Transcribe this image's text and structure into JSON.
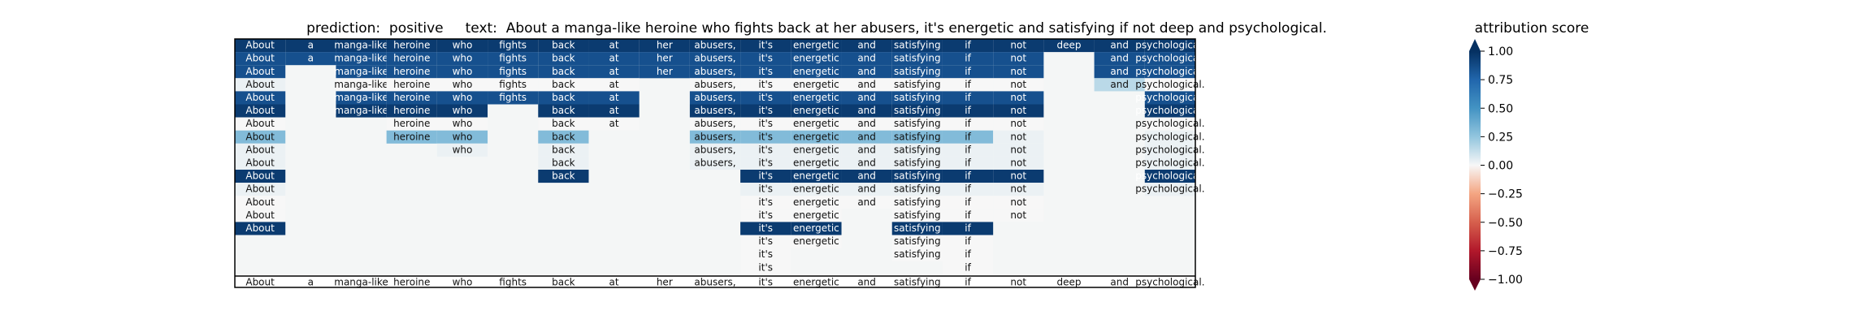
{
  "chart_data": {
    "type": "heatmap",
    "title": "prediction:  positive     text:  About a manga-like heroine who fights back at her abusers, it's energetic and satisfying if not deep and psychological.",
    "prediction": "positive",
    "text": "About a manga-like heroine who fights back at her abusers, it's energetic and satisfying if not deep and psychological.",
    "tokens": [
      "About",
      "a",
      "manga-like",
      "heroine",
      "who",
      "fights",
      "back",
      "at",
      "her",
      "abusers,",
      "it's",
      "energetic",
      "and",
      "satisfying",
      "if",
      "not",
      "deep",
      "and",
      "psychological."
    ],
    "rows": [
      [
        0.95,
        0.95,
        0.95,
        0.95,
        0.95,
        0.95,
        0.95,
        0.95,
        0.95,
        0.95,
        0.95,
        0.95,
        0.95,
        0.95,
        0.95,
        0.95,
        0.95,
        0.95,
        0.95
      ],
      [
        0.85,
        0.85,
        0.85,
        0.85,
        0.85,
        0.85,
        0.85,
        0.85,
        0.85,
        0.85,
        0.85,
        0.85,
        0.85,
        0.85,
        0.85,
        0.85,
        null,
        0.85,
        0.85
      ],
      [
        0.85,
        null,
        0.85,
        0.85,
        0.85,
        0.85,
        0.85,
        0.85,
        0.85,
        0.85,
        0.85,
        0.85,
        0.85,
        0.85,
        0.85,
        0.85,
        null,
        0.85,
        0.85
      ],
      [
        0.03,
        null,
        0.0,
        0.0,
        0.0,
        0.0,
        0.0,
        0.0,
        null,
        0.0,
        0.0,
        0.0,
        0.0,
        0.0,
        0.0,
        0.0,
        null,
        0.15,
        0.0
      ],
      [
        0.85,
        null,
        0.85,
        0.85,
        0.85,
        0.85,
        0.85,
        0.85,
        null,
        0.85,
        0.85,
        0.85,
        0.85,
        0.85,
        0.85,
        0.85,
        null,
        null,
        0.85
      ],
      [
        0.95,
        null,
        0.95,
        0.95,
        0.95,
        null,
        0.95,
        0.95,
        null,
        0.95,
        0.95,
        0.95,
        0.95,
        0.95,
        0.95,
        0.95,
        null,
        null,
        0.95
      ],
      [
        0.0,
        null,
        null,
        0.0,
        0.0,
        null,
        0.0,
        0.0,
        null,
        0.0,
        0.0,
        0.0,
        0.0,
        0.0,
        0.0,
        0.0,
        null,
        null,
        0.0
      ],
      [
        0.3,
        null,
        null,
        0.3,
        0.3,
        null,
        0.3,
        null,
        null,
        0.3,
        0.3,
        0.3,
        0.3,
        0.3,
        0.3,
        0.03,
        null,
        null,
        0.03
      ],
      [
        0.03,
        null,
        null,
        null,
        0.03,
        null,
        0.03,
        null,
        null,
        0.03,
        0.03,
        0.03,
        0.03,
        0.03,
        0.03,
        0.03,
        null,
        null,
        0.03
      ],
      [
        0.03,
        null,
        null,
        null,
        null,
        null,
        0.03,
        null,
        null,
        0.03,
        0.03,
        0.03,
        0.03,
        0.03,
        0.03,
        0.03,
        null,
        null,
        0.03
      ],
      [
        0.95,
        null,
        null,
        null,
        null,
        null,
        0.95,
        null,
        null,
        null,
        0.95,
        0.95,
        0.95,
        0.95,
        0.95,
        0.95,
        null,
        null,
        0.95
      ],
      [
        0.03,
        null,
        null,
        null,
        null,
        null,
        null,
        null,
        null,
        null,
        0.03,
        0.03,
        0.03,
        0.03,
        0.03,
        0.03,
        null,
        null,
        0.03
      ],
      [
        0.0,
        null,
        null,
        null,
        null,
        null,
        null,
        null,
        null,
        null,
        0.0,
        0.0,
        0.0,
        0.0,
        0.0,
        0.0,
        null,
        null,
        null
      ],
      [
        0.0,
        null,
        null,
        null,
        null,
        null,
        null,
        null,
        null,
        null,
        0.0,
        0.0,
        null,
        0.0,
        0.0,
        0.0,
        null,
        null,
        null
      ],
      [
        0.95,
        null,
        null,
        null,
        null,
        null,
        null,
        null,
        null,
        null,
        0.95,
        0.95,
        null,
        0.95,
        0.95,
        null,
        null,
        null,
        null
      ],
      [
        null,
        null,
        null,
        null,
        null,
        null,
        null,
        null,
        null,
        null,
        0.0,
        0.0,
        null,
        0.0,
        0.0,
        null,
        null,
        null,
        null
      ],
      [
        null,
        null,
        null,
        null,
        null,
        null,
        null,
        null,
        null,
        null,
        0.0,
        null,
        null,
        0.0,
        0.0,
        null,
        null,
        null,
        null
      ],
      [
        null,
        null,
        null,
        null,
        null,
        null,
        null,
        null,
        null,
        null,
        0.0,
        null,
        null,
        null,
        0.0,
        null,
        null,
        null,
        null
      ]
    ],
    "colorbar": {
      "label": "attribution score",
      "range": [
        -1.0,
        1.0
      ],
      "ticks": [
        1.0,
        0.75,
        0.5,
        0.25,
        0.0,
        -0.25,
        -0.5,
        -0.75,
        -1.0
      ],
      "tick_labels": [
        "1.00",
        "0.75",
        "0.50",
        "0.25",
        "0.00",
        "−0.25",
        "−0.50",
        "−0.75",
        "−1.00"
      ],
      "colormap": "RdBu"
    }
  }
}
